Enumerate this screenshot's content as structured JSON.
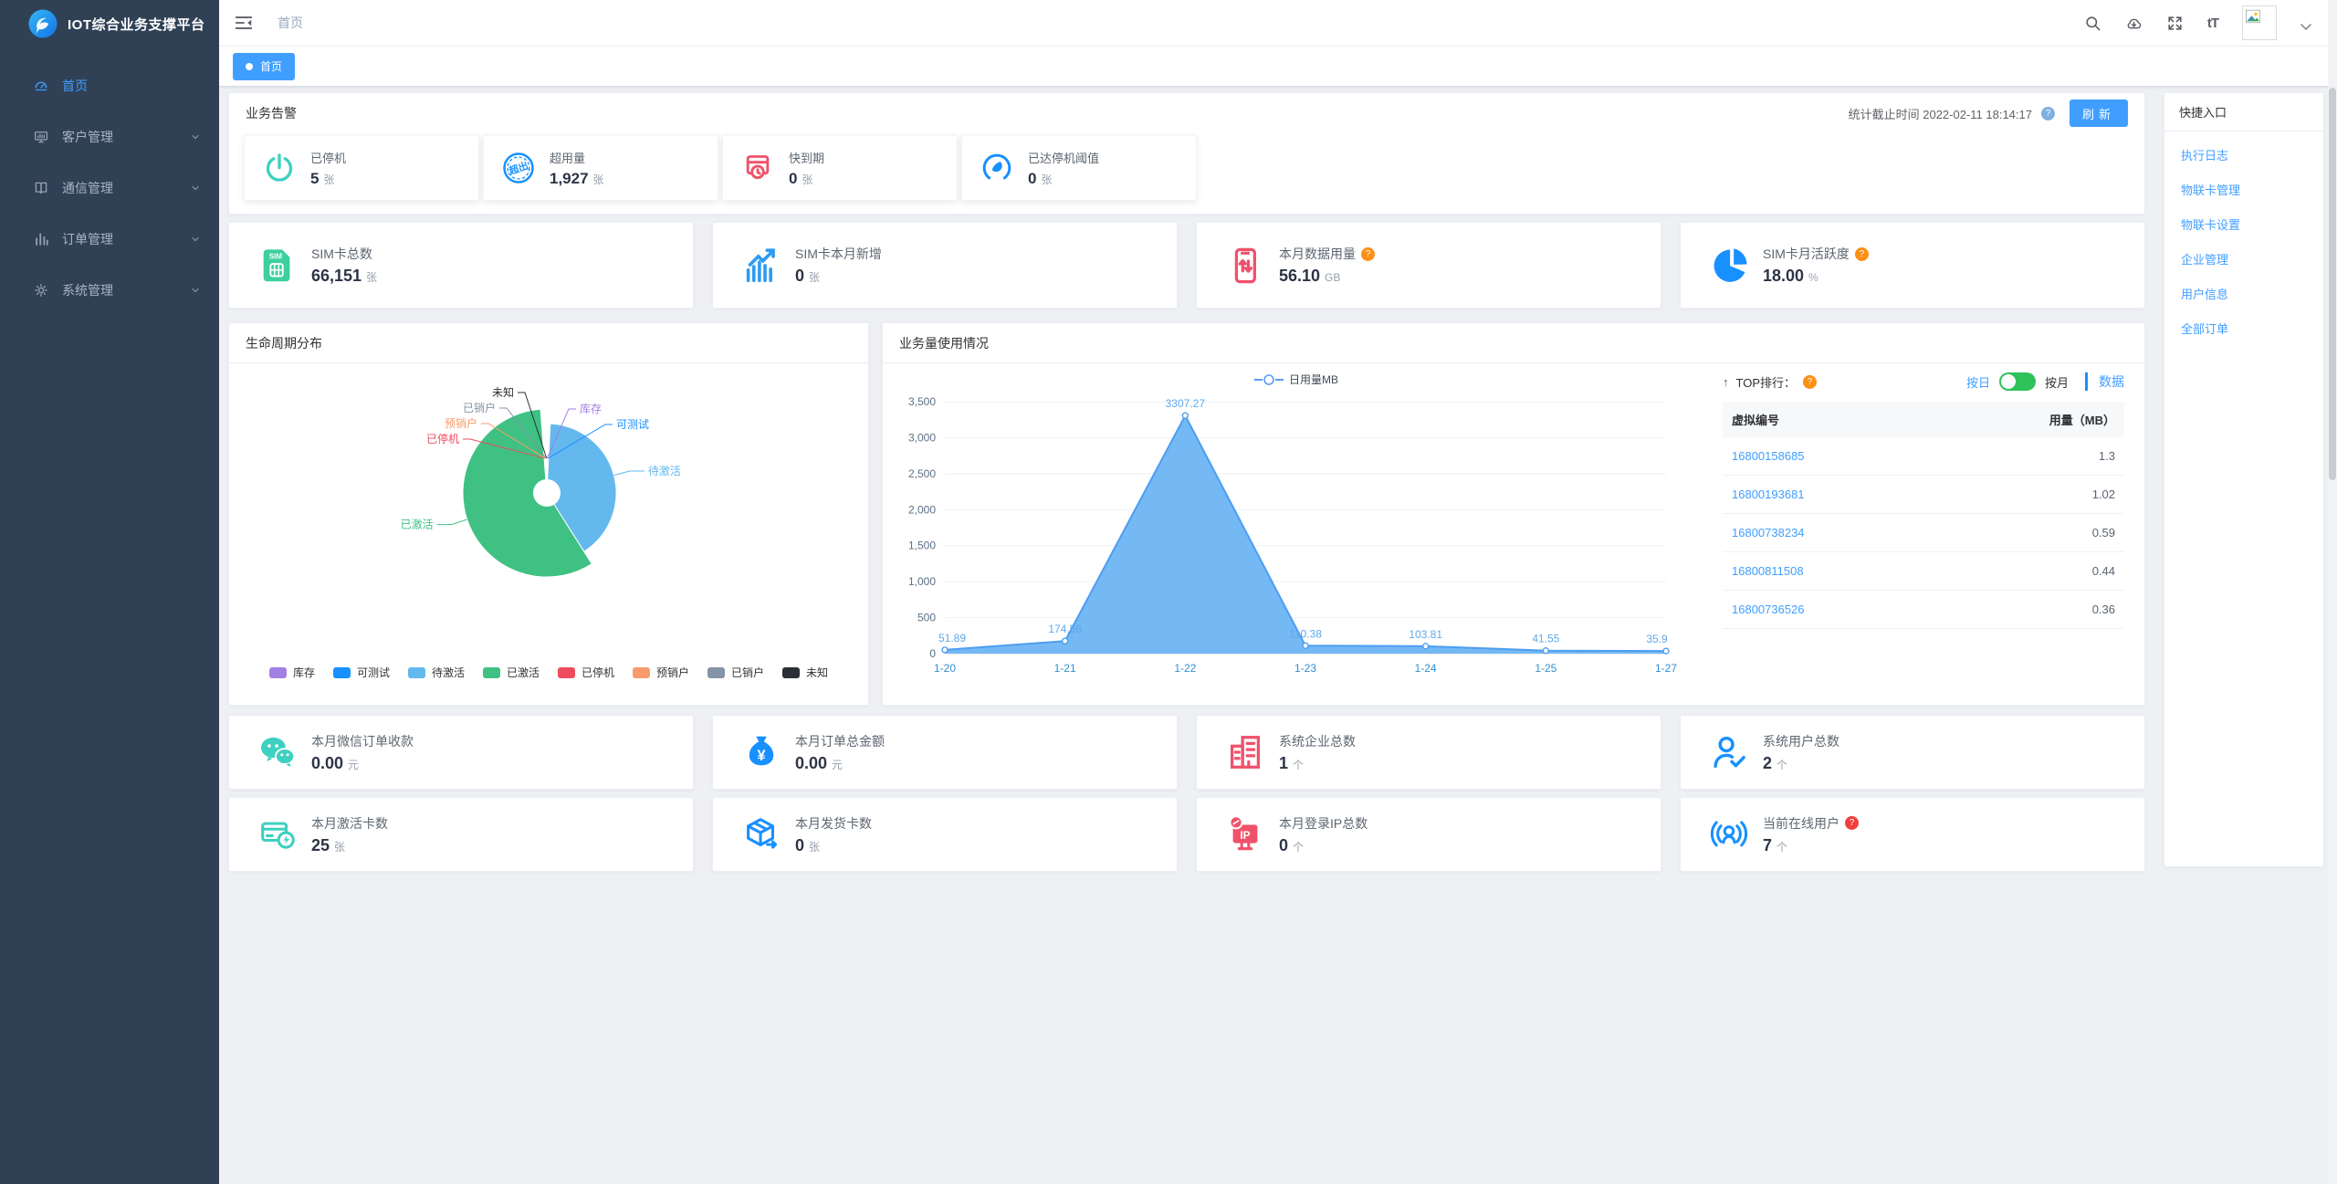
{
  "app": {
    "title": "IOT综合业务支撑平台"
  },
  "colors": {
    "primary": "#409eff",
    "sidebar_bg": "#304156",
    "teal": "#3ed0c0",
    "green": "#3ecf9f",
    "blue": "#1890ff",
    "light_blue": "#2f9bf0",
    "red": "#f0516b",
    "toggle_green": "#2fc25b"
  },
  "sidebar": {
    "items": [
      {
        "label": "首页",
        "active": true
      },
      {
        "label": "客户管理",
        "active": false
      },
      {
        "label": "通信管理",
        "active": false
      },
      {
        "label": "订单管理",
        "active": false
      },
      {
        "label": "系统管理",
        "active": false
      }
    ]
  },
  "topbar": {
    "breadcrumb": "首页",
    "font_size_icon_text": "tT"
  },
  "tab": {
    "label": "首页"
  },
  "alarm": {
    "title": "业务告警",
    "stat_label": "统计截止时间",
    "stat_time": "2022-02-11 18:14:17",
    "refresh_label": "刷新",
    "items": [
      {
        "label": "已停机",
        "value": "5",
        "unit": "张",
        "color": "#3ed0c0"
      },
      {
        "label": "超用量",
        "value": "1,927",
        "unit": "张",
        "color": "#1890ff",
        "badge_text": "超出"
      },
      {
        "label": "快到期",
        "value": "0",
        "unit": "张",
        "color": "#f0516b"
      },
      {
        "label": "已达停机阈值",
        "value": "0",
        "unit": "张",
        "color": "#1890ff"
      }
    ]
  },
  "kpis_top": [
    {
      "label": "SIM卡总数",
      "value": "66,151",
      "unit": "张",
      "color": "#3ecf9f",
      "icon_text": "SIM"
    },
    {
      "label": "SIM卡本月新增",
      "value": "0",
      "unit": "张",
      "color": "#2f9bf0"
    },
    {
      "label": "本月数据用量",
      "value": "56.10",
      "unit": "GB",
      "color": "#f0516b",
      "help": true
    },
    {
      "label": "SIM卡月活跃度",
      "value": "18.00",
      "unit": "%",
      "color": "#1890ff",
      "help": true
    }
  ],
  "kpis_mid": [
    {
      "label": "本月微信订单收款",
      "value": "0.00",
      "unit": "元",
      "color": "#3ed0c0"
    },
    {
      "label": "本月订单总金额",
      "value": "0.00",
      "unit": "元",
      "color": "#1890ff",
      "icon_text": "¥"
    },
    {
      "label": "系统企业总数",
      "value": "1",
      "unit": "个",
      "color": "#f0516b"
    },
    {
      "label": "系统用户总数",
      "value": "2",
      "unit": "个",
      "color": "#1890ff"
    }
  ],
  "kpis_bottom": [
    {
      "label": "本月激活卡数",
      "value": "25",
      "unit": "张",
      "color": "#3ed0c0"
    },
    {
      "label": "本月发货卡数",
      "value": "0",
      "unit": "张",
      "color": "#1890ff"
    },
    {
      "label": "本月登录IP总数",
      "value": "0",
      "unit": "个",
      "color": "#f0516b",
      "icon_text": "IP"
    },
    {
      "label": "当前在线用户",
      "value": "7",
      "unit": "个",
      "color": "#1890ff",
      "help": true
    }
  ],
  "lifecycle": {
    "title": "生命周期分布"
  },
  "usage": {
    "title": "业务量使用情况"
  },
  "rank": {
    "arrow": "↑",
    "title": "TOP排行：",
    "day_label": "按日",
    "month_label": "按月",
    "data_label": "数据",
    "col_id": "虚拟编号",
    "col_usage": "用量（MB）",
    "rows": [
      {
        "sim": "16800158685",
        "usage": "1.3"
      },
      {
        "sim": "16800193681",
        "usage": "1.02"
      },
      {
        "sim": "16800738234",
        "usage": "0.59"
      },
      {
        "sim": "16800811508",
        "usage": "0.44"
      },
      {
        "sim": "16800736526",
        "usage": "0.36"
      }
    ]
  },
  "quick": {
    "title": "快捷入口",
    "links": [
      "执行日志",
      "物联卡管理",
      "物联卡设置",
      "企业管理",
      "用户信息",
      "全部订单"
    ]
  },
  "chart_data": [
    {
      "type": "pie",
      "title": "生命周期分布",
      "labels": [
        "库存",
        "可测试",
        "待激活",
        "已激活",
        "已停机",
        "预销户",
        "已销户",
        "未知"
      ],
      "values": [
        0.3,
        0.5,
        40.2,
        57.8,
        0.4,
        0.3,
        0.3,
        0.2
      ],
      "unit": "percent_estimated",
      "colors": [
        "#a47fe3",
        "#1890ff",
        "#63b8ee",
        "#3fc183",
        "#ee4c5e",
        "#f99c6c",
        "#8493a8",
        "#2b3036"
      ],
      "legend_position": "bottom",
      "donut_hole": true,
      "rose": true
    },
    {
      "type": "area",
      "title": "业务量使用情况",
      "series_name": "日用量MB",
      "x": [
        "1-20",
        "1-21",
        "1-22",
        "1-23",
        "1-24",
        "1-25",
        "1-27"
      ],
      "values": [
        51.89,
        174.56,
        3307.27,
        110.38,
        103.81,
        41.55,
        35.9
      ],
      "ylim": [
        0,
        3500
      ],
      "yticks": [
        0,
        500,
        1000,
        1500,
        2000,
        2500,
        3000,
        3500
      ],
      "grid": true,
      "legend_position": "top",
      "line_color": "#4d9ef0",
      "fill_color": "#6db4f3"
    }
  ]
}
